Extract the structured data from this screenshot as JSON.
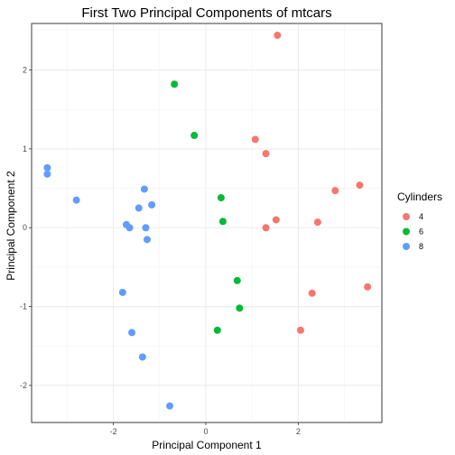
{
  "chart_data": {
    "type": "scatter",
    "title": "First Two Principal Components of mtcars",
    "xlabel": "Principal Component 1",
    "ylabel": "Principal Component 2",
    "xlim": [
      -3.77,
      3.81
    ],
    "ylim": [
      -2.47,
      2.59
    ],
    "xticks": [
      -2,
      0,
      2
    ],
    "yticks": [
      -2,
      -1,
      0,
      1,
      2
    ],
    "grid": true,
    "legend_title": "Cylinders",
    "legend_position": "right",
    "series": [
      {
        "name": "4",
        "color": "#F8766D",
        "points": [
          [
            1.55,
            2.44
          ],
          [
            1.07,
            1.12
          ],
          [
            1.3,
            0.94
          ],
          [
            2.8,
            0.47
          ],
          [
            3.33,
            0.54
          ],
          [
            2.42,
            0.07
          ],
          [
            1.52,
            0.1
          ],
          [
            1.3,
            0.0
          ],
          [
            2.3,
            -0.83
          ],
          [
            3.5,
            -0.75
          ],
          [
            2.05,
            -1.3
          ]
        ]
      },
      {
        "name": "6",
        "color": "#00BA38",
        "points": [
          [
            -0.68,
            1.82
          ],
          [
            -0.25,
            1.17
          ],
          [
            0.33,
            0.38
          ],
          [
            0.37,
            0.08
          ],
          [
            0.68,
            -0.67
          ],
          [
            0.73,
            -1.02
          ],
          [
            0.25,
            -1.3
          ]
        ]
      },
      {
        "name": "8",
        "color": "#619CFF",
        "points": [
          [
            -3.43,
            0.76
          ],
          [
            -3.43,
            0.68
          ],
          [
            -2.8,
            0.35
          ],
          [
            -1.33,
            0.49
          ],
          [
            -1.17,
            0.29
          ],
          [
            -1.45,
            0.25
          ],
          [
            -1.72,
            0.04
          ],
          [
            -1.65,
            0.0
          ],
          [
            -1.3,
            0.0
          ],
          [
            -1.27,
            -0.15
          ],
          [
            -1.8,
            -0.82
          ],
          [
            -1.6,
            -1.33
          ],
          [
            -1.37,
            -1.64
          ],
          [
            -0.78,
            -2.26
          ]
        ]
      }
    ]
  }
}
